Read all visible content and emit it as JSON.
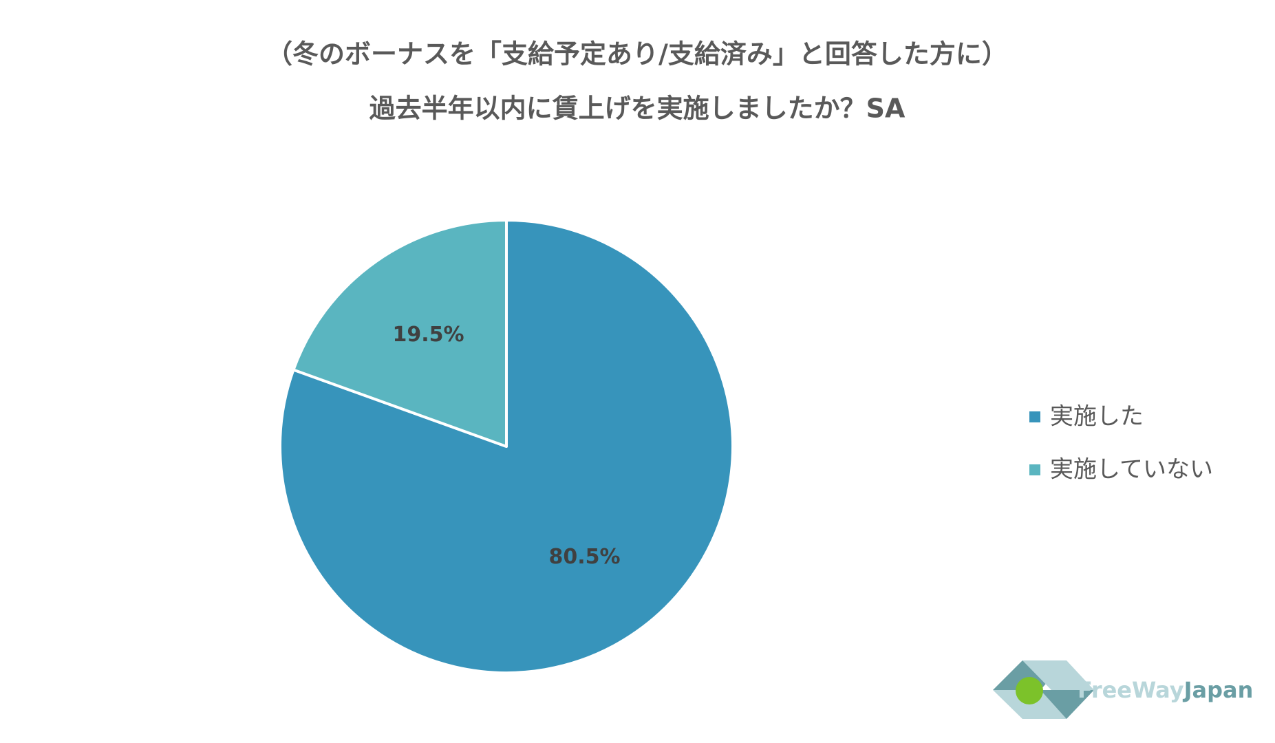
{
  "chart_data": {
    "type": "pie",
    "title": [
      "（冬のボーナスを「支給予定あり/支給済み」と回答した方に）",
      "過去半年以内に賃上げを実施しましたか？SA"
    ],
    "categories": [
      "実施した",
      "実施していない"
    ],
    "values": [
      80.5,
      19.5
    ],
    "value_labels": [
      "80.5%",
      "19.5%"
    ],
    "colors": [
      "#3794bb",
      "#5ab5c0"
    ]
  },
  "logo": {
    "text": [
      "FreeWay",
      "Japan"
    ]
  }
}
